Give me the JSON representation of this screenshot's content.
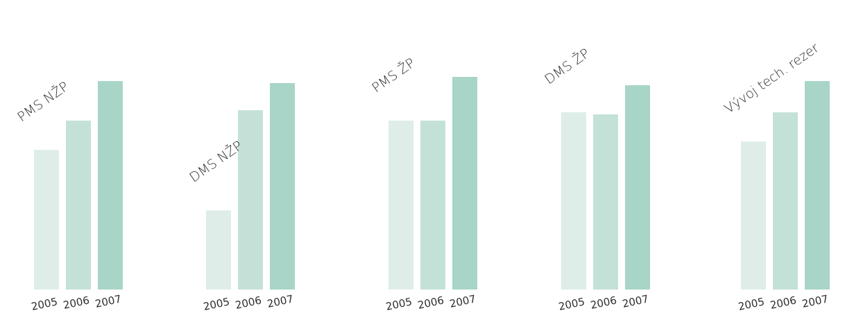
{
  "chart_data": {
    "type": "bar",
    "title": "",
    "xlabel": "",
    "ylabel": "",
    "ylim": [
      0,
      1.05
    ],
    "grid": false,
    "legend": "none",
    "colors": [
      "#deede8",
      "#c4e1d8",
      "#a8d5c7"
    ],
    "groups": [
      {
        "name": "PMS NŽP",
        "categories": [
          "2005",
          "2006",
          "2007"
        ],
        "values": [
          0.67,
          0.81,
          1.0
        ]
      },
      {
        "name": "DMS NŽP",
        "categories": [
          "2005",
          "2006",
          "2007"
        ],
        "values": [
          0.38,
          0.86,
          0.99
        ]
      },
      {
        "name": "PMS ŽP",
        "categories": [
          "2005",
          "2006",
          "2007"
        ],
        "values": [
          0.81,
          0.81,
          1.02
        ]
      },
      {
        "name": "DMS ŽP",
        "categories": [
          "2005",
          "2006",
          "2007"
        ],
        "values": [
          0.85,
          0.84,
          0.98
        ]
      },
      {
        "name": "Vývoj tech. rezer",
        "categories": [
          "2005",
          "2006",
          "2007"
        ],
        "values": [
          0.71,
          0.85,
          1.0
        ]
      }
    ]
  }
}
